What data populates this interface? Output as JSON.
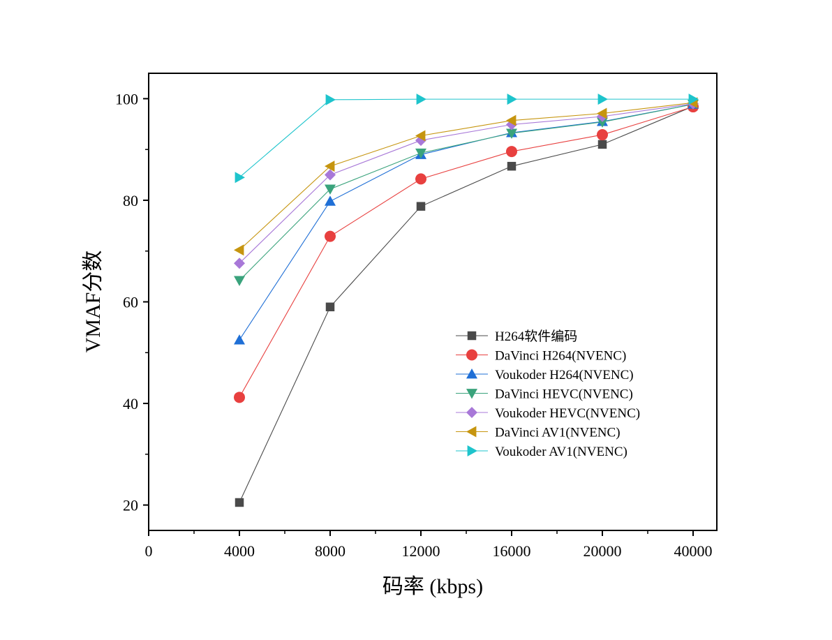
{
  "chart_data": {
    "type": "line",
    "xlabel": "码率 (kbps)",
    "ylabel": "VMAF分数",
    "categories": [
      "4000",
      "8000",
      "12000",
      "16000",
      "20000",
      "40000"
    ],
    "x_tick_labels": [
      "0",
      "4000",
      "8000",
      "12000",
      "16000",
      "20000",
      "40000"
    ],
    "y_tick_labels": [
      "20",
      "40",
      "60",
      "80",
      "100"
    ],
    "ylim": [
      15,
      105
    ],
    "grid": false,
    "legend_position": "center-right",
    "series": [
      {
        "name": "H264软件编码",
        "marker": "square",
        "color": "#4a4a4a",
        "values": [
          20.5,
          59.0,
          78.8,
          86.7,
          91.0,
          98.5
        ]
      },
      {
        "name": "DaVinci H264(NVENC)",
        "marker": "circle",
        "color": "#e8403f",
        "values": [
          41.2,
          72.9,
          84.2,
          89.6,
          92.9,
          98.4
        ]
      },
      {
        "name": "Voukoder H264(NVENC)",
        "marker": "triangle-up",
        "color": "#1f6fd6",
        "values": [
          52.5,
          79.8,
          89.0,
          93.3,
          95.5,
          98.9
        ]
      },
      {
        "name": "DaVinci HEVC(NVENC)",
        "marker": "triangle-down",
        "color": "#3aa37c",
        "values": [
          64.2,
          82.2,
          89.3,
          93.2,
          95.4,
          98.9
        ]
      },
      {
        "name": "Voukoder HEVC(NVENC)",
        "marker": "diamond",
        "color": "#a878d8",
        "values": [
          67.6,
          85.0,
          91.8,
          94.9,
          96.5,
          99.0
        ]
      },
      {
        "name": "DaVinci AV1(NVENC)",
        "marker": "triangle-left",
        "color": "#c6950f",
        "values": [
          70.2,
          86.7,
          92.7,
          95.7,
          97.1,
          99.2
        ]
      },
      {
        "name": "Voukoder AV1(NVENC)",
        "marker": "triangle-right",
        "color": "#1ec4cc",
        "values": [
          84.5,
          99.8,
          99.9,
          99.9,
          99.9,
          99.9
        ]
      }
    ]
  }
}
